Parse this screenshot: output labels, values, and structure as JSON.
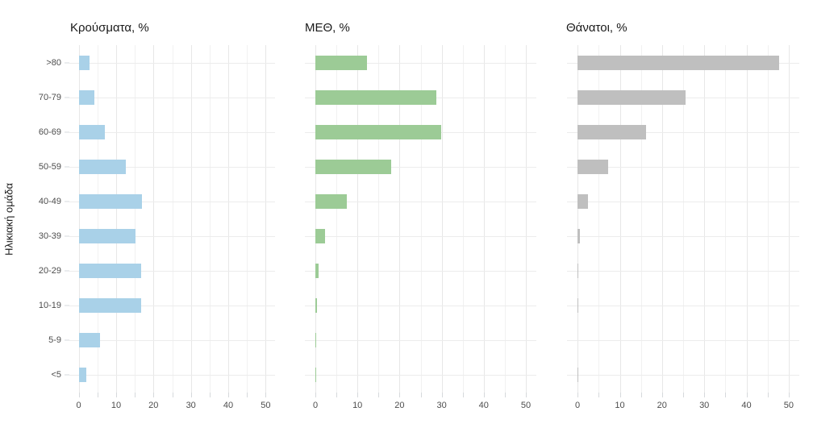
{
  "y_axis_title": "Ηλικιακή ομάδα",
  "colors": {
    "cases_bar": "#a9d1e8",
    "icu_bar": "#9ccb96",
    "deaths_bar": "#bfbfbf",
    "grid_major": "#e7e7e7",
    "grid_minor": "#f1f1f1",
    "axis_tick": "#d6d9dc",
    "tick_label": "#4d4d4d",
    "title_text": "#1a1a1a"
  },
  "chart_data": [
    {
      "type": "bar",
      "orientation": "horizontal",
      "title": "Κρούσματα, %",
      "ylabel": "Ηλικιακή ομάδα",
      "categories": [
        ">80",
        "70-79",
        "60-69",
        "50-59",
        "40-49",
        "30-39",
        "20-29",
        "10-19",
        "5-9",
        "<5"
      ],
      "values": [
        2.8,
        4.1,
        7.1,
        12.5,
        16.9,
        15.3,
        16.8,
        16.8,
        5.6,
        2.1
      ],
      "color": "#a9d1e8",
      "xlim": [
        -2.5,
        52.5
      ],
      "x_major_ticks": [
        0,
        10,
        20,
        30,
        40,
        50
      ],
      "x_minor_ticks": [
        5,
        15,
        25,
        35,
        45
      ],
      "grid": true,
      "legend": false,
      "show_y_labels": true
    },
    {
      "type": "bar",
      "orientation": "horizontal",
      "title": "ΜΕΘ, %",
      "ylabel": "Ηλικιακή ομάδα",
      "categories": [
        ">80",
        "70-79",
        "60-69",
        "50-59",
        "40-49",
        "30-39",
        "20-29",
        "10-19",
        "5-9",
        "<5"
      ],
      "values": [
        12.3,
        28.7,
        29.8,
        18.0,
        7.5,
        2.3,
        0.8,
        0.4,
        0.2,
        0.2
      ],
      "color": "#9ccb96",
      "xlim": [
        -2.5,
        52.5
      ],
      "x_major_ticks": [
        0,
        10,
        20,
        30,
        40,
        50
      ],
      "x_minor_ticks": [
        5,
        15,
        25,
        35,
        45
      ],
      "grid": true,
      "legend": false,
      "show_y_labels": false
    },
    {
      "type": "bar",
      "orientation": "horizontal",
      "title": "Θάνατοι, %",
      "ylabel": "Ηλικιακή ομάδα",
      "categories": [
        ">80",
        "70-79",
        "60-69",
        "50-59",
        "40-49",
        "30-39",
        "20-29",
        "10-19",
        "5-9",
        "<5"
      ],
      "values": [
        47.7,
        25.6,
        16.2,
        7.3,
        2.4,
        0.6,
        0.1,
        0.2,
        0,
        0.1
      ],
      "color": "#bfbfbf",
      "xlim": [
        -2.5,
        52.5
      ],
      "x_major_ticks": [
        0,
        10,
        20,
        30,
        40,
        50
      ],
      "x_minor_ticks": [
        5,
        15,
        25,
        35,
        45
      ],
      "grid": true,
      "legend": false,
      "show_y_labels": false
    }
  ]
}
